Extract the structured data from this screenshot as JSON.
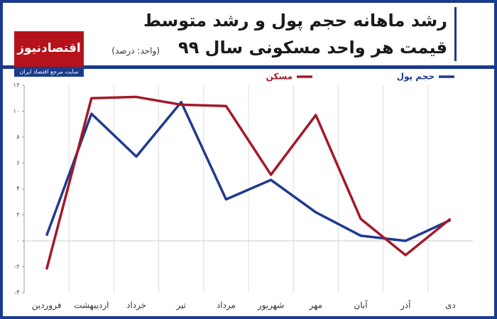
{
  "logo": {
    "name": "اقتصادنیوز",
    "tagline": "سایت مرجع اقتصاد ایران"
  },
  "chart_data": {
    "type": "line",
    "title": [
      "رشد ماهانه حجم پول و رشد متوسط",
      "قیمت هر واحد مسکونی سال ۹۹"
    ],
    "subtitle": "(واحد: درصد)",
    "categories": [
      "فروردین",
      "اردیبهشت",
      "خرداد",
      "تیر",
      "مرداد",
      "شهریور",
      "مهر",
      "آبان",
      "آذر",
      "دی"
    ],
    "series": [
      {
        "name": "حجم پول",
        "color": "#1f3a8f",
        "values": [
          0.4,
          9.8,
          6.5,
          10.7,
          3.2,
          4.7,
          2.2,
          0.4,
          0.0,
          1.6
        ]
      },
      {
        "name": "مسکن",
        "color": "#a3192a",
        "values": [
          -2.2,
          11.0,
          11.1,
          10.5,
          10.4,
          5.1,
          9.7,
          1.7,
          -1.1,
          1.7
        ]
      }
    ],
    "ylim": [
      -4,
      12
    ],
    "yticks": [
      {
        "value": -4,
        "label": "-۴"
      },
      {
        "value": -2,
        "label": "-۲"
      },
      {
        "value": 0,
        "label": "۰"
      },
      {
        "value": 2,
        "label": "۲"
      },
      {
        "value": 4,
        "label": "۴"
      },
      {
        "value": 6,
        "label": "۶"
      },
      {
        "value": 8,
        "label": "۸"
      },
      {
        "value": 10,
        "label": "۱۰"
      },
      {
        "value": 12,
        "label": "۱۲"
      }
    ],
    "legend": "top-right"
  }
}
